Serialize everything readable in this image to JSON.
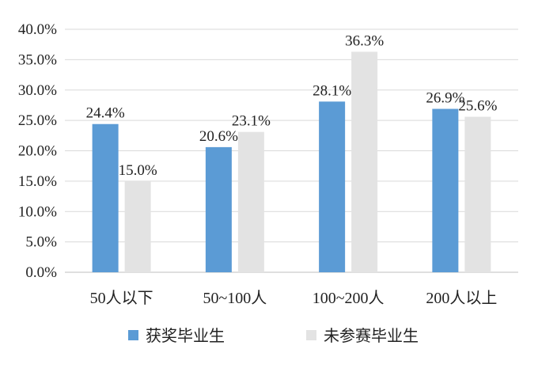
{
  "chart_data": {
    "type": "bar",
    "categories": [
      "50人以下",
      "50~100人",
      "100~200人",
      "200人以上"
    ],
    "series": [
      {
        "name": "获奖毕业生",
        "values": [
          24.4,
          20.6,
          28.1,
          26.9
        ],
        "labels": [
          "24.4%",
          "20.6%",
          "28.1%",
          "26.9%"
        ],
        "color": "#5b9bd5"
      },
      {
        "name": "未参赛毕业生",
        "values": [
          15.0,
          23.1,
          36.3,
          25.6
        ],
        "labels": [
          "15.0%",
          "23.1%",
          "36.3%",
          "25.6%"
        ],
        "color": "#e3e3e3"
      }
    ],
    "y_ticks": [
      "0.0%",
      "5.0%",
      "10.0%",
      "15.0%",
      "20.0%",
      "25.0%",
      "30.0%",
      "35.0%",
      "40.0%"
    ],
    "ylim": [
      0,
      40
    ],
    "grid": true,
    "legend_position": "bottom"
  }
}
